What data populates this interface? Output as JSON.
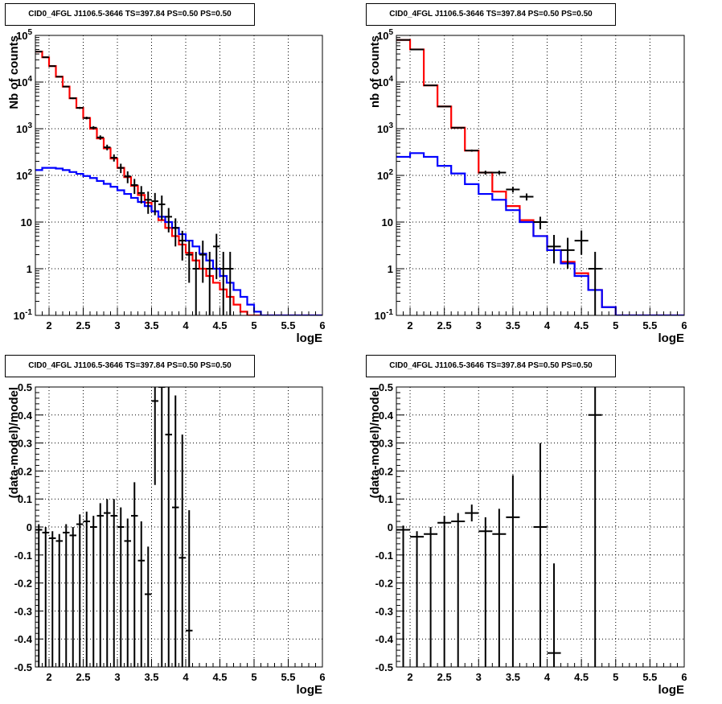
{
  "chart_data": [
    {
      "type": "histogram",
      "title": "CID0_4FGL J1106.5-3646 TS=397.84 PS=0.50 PS=0.50",
      "xlabel": "logE",
      "ylabel": "Nb of counts",
      "xlim": [
        1.8,
        6.0
      ],
      "ylim": [
        0.1,
        100000
      ],
      "yscale": "log",
      "grid": true,
      "x_ticks": [
        "2",
        "2.5",
        "3",
        "3.5",
        "4",
        "4.5",
        "5",
        "5.5",
        "6"
      ],
      "y_ticks": [
        "10^-1",
        "1",
        "10",
        "10^2",
        "10^3",
        "10^4",
        "10^5"
      ],
      "bin_edges": [
        1.8,
        1.9,
        2.0,
        2.1,
        2.2,
        2.3,
        2.4,
        2.5,
        2.6,
        2.7,
        2.8,
        2.9,
        3.0,
        3.1,
        3.2,
        3.3,
        3.4,
        3.5,
        3.6,
        3.7,
        3.8,
        3.9,
        4.0,
        4.1,
        4.2,
        4.3,
        4.4,
        4.5,
        4.6,
        4.7,
        4.8,
        4.9,
        5.0,
        5.1,
        5.2,
        5.3,
        5.4,
        5.5,
        5.6,
        5.7,
        5.8,
        5.9,
        6.0
      ],
      "series": [
        {
          "name": "",
          "kind": "step",
          "color": "#ff0000",
          "values": [
            45000,
            34000,
            22000,
            13000,
            8000,
            4500,
            2800,
            1700,
            1000,
            620,
            380,
            230,
            145,
            92,
            60,
            38,
            26,
            17,
            11,
            7.5,
            5,
            3.3,
            2.2,
            1.5,
            1.0,
            0.7,
            0.5,
            0.36,
            0.25,
            0.17,
            0.12,
            0.1,
            0.1,
            0.1,
            0.1,
            0.1,
            0.1,
            0.1,
            0.1,
            0.1,
            0.1,
            0.1
          ]
        },
        {
          "name": "",
          "kind": "step",
          "color": "#0000ff",
          "values": [
            130,
            145,
            145,
            140,
            130,
            118,
            108,
            97,
            88,
            76,
            66,
            57,
            48,
            40,
            33,
            27,
            22,
            17,
            13,
            10,
            7.5,
            5.5,
            4,
            3,
            2.1,
            1.5,
            1.0,
            0.7,
            0.5,
            0.35,
            0.25,
            0.17,
            0.12,
            0.1,
            0.1,
            0.1,
            0.1,
            0.1,
            0.1,
            0.1,
            0.1,
            0.1
          ]
        },
        {
          "name": "",
          "kind": "points",
          "color": "#000000",
          "x": [
            1.85,
            1.95,
            2.05,
            2.15,
            2.25,
            2.35,
            2.45,
            2.55,
            2.65,
            2.75,
            2.85,
            2.95,
            3.05,
            3.15,
            3.25,
            3.35,
            3.45,
            3.55,
            3.65,
            3.75,
            3.85,
            3.95,
            4.05,
            4.15,
            4.25,
            4.35,
            4.45,
            4.55,
            4.65
          ],
          "y": [
            45000,
            34000,
            22000,
            13000,
            8000,
            4500,
            2800,
            1700,
            1050,
            650,
            400,
            240,
            145,
            95,
            62,
            42,
            30,
            28,
            24,
            13,
            7.5,
            4,
            2,
            1,
            2,
            1,
            3,
            1,
            1
          ],
          "err_low": [
            600,
            500,
            400,
            300,
            250,
            180,
            140,
            110,
            85,
            70,
            55,
            42,
            33,
            27,
            22,
            17,
            15,
            14,
            13,
            7,
            4.5,
            2.5,
            1.5,
            0.9,
            1.5,
            0.9,
            2.4,
            0.9,
            0.9
          ],
          "err_high": [
            600,
            500,
            400,
            300,
            250,
            180,
            140,
            110,
            85,
            70,
            55,
            42,
            33,
            27,
            22,
            17,
            15,
            14,
            13,
            7,
            4.5,
            2.5,
            2.0,
            1.3,
            2.0,
            1.3,
            2.6,
            1.3,
            1.3
          ]
        }
      ]
    },
    {
      "type": "histogram",
      "title": "CID0_4FGL J1106.5-3646 TS=397.84 PS=0.50 PS=0.50",
      "xlabel": "logE",
      "ylabel": "nb of counts",
      "xlim": [
        1.8,
        6.0
      ],
      "ylim": [
        0.1,
        100000
      ],
      "yscale": "log",
      "grid": true,
      "x_ticks": [
        "2",
        "2.5",
        "3",
        "3.5",
        "4",
        "4.5",
        "5",
        "5.5",
        "6"
      ],
      "y_ticks": [
        "10^-1",
        "1",
        "10",
        "10^2",
        "10^3",
        "10^4",
        "10^5"
      ],
      "bin_edges": [
        1.8,
        2.0,
        2.2,
        2.4,
        2.6,
        2.8,
        3.0,
        3.2,
        3.4,
        3.6,
        3.8,
        4.0,
        4.2,
        4.4,
        4.6,
        4.8,
        5.0,
        5.2,
        5.4,
        5.6,
        5.8,
        6.0
      ],
      "series": [
        {
          "name": "",
          "kind": "step",
          "color": "#ff0000",
          "values": [
            80000,
            50000,
            8500,
            3000,
            1050,
            340,
            115,
            45,
            22,
            11,
            5,
            2.5,
            1.4,
            0.8,
            0.35,
            0.15,
            0.1,
            0.1,
            0.1,
            0.1,
            0.1
          ]
        },
        {
          "name": "",
          "kind": "step",
          "color": "#0000ff",
          "values": [
            250,
            300,
            250,
            160,
            110,
            65,
            40,
            30,
            18,
            10,
            5,
            2.5,
            1.3,
            0.7,
            0.35,
            0.15,
            0.1,
            0.1,
            0.1,
            0.1,
            0.1
          ]
        },
        {
          "name": "",
          "kind": "points",
          "color": "#000000",
          "x": [
            1.9,
            2.1,
            2.3,
            2.5,
            2.7,
            2.9,
            3.1,
            3.3,
            3.5,
            3.7,
            3.9,
            4.1,
            4.3,
            4.5,
            4.7
          ],
          "y": [
            80000,
            50000,
            8500,
            3000,
            1050,
            340,
            115,
            115,
            50,
            35,
            10,
            3,
            2.5,
            4,
            1
          ],
          "err_low": [
            280,
            220,
            92,
            55,
            32,
            18,
            11,
            11,
            7,
            6,
            3,
            1.7,
            1.5,
            2,
            0.9
          ],
          "err_high": [
            280,
            220,
            92,
            55,
            32,
            18,
            11,
            11,
            7,
            6,
            3,
            2.3,
            2.1,
            2.6,
            1.3
          ]
        }
      ]
    },
    {
      "type": "scatter",
      "title": "CID0_4FGL J1106.5-3646 TS=397.84 PS=0.50 PS=0.50",
      "xlabel": "logE",
      "ylabel": "(data-model)/model",
      "xlim": [
        1.8,
        6.0
      ],
      "ylim": [
        -0.5,
        0.5
      ],
      "grid": true,
      "x_ticks": [
        "2",
        "2.5",
        "3",
        "3.5",
        "4",
        "4.5",
        "5",
        "5.5",
        "6"
      ],
      "y_ticks": [
        "-0.5",
        "-0.4",
        "-0.3",
        "-0.2",
        "-0.1",
        "0",
        "0.1",
        "0.2",
        "0.3",
        "0.4",
        "0.5"
      ],
      "series": [
        {
          "name": "",
          "kind": "points",
          "color": "#000000",
          "xerr": 0.05,
          "x": [
            1.85,
            1.95,
            2.05,
            2.15,
            2.25,
            2.35,
            2.45,
            2.55,
            2.65,
            2.75,
            2.85,
            2.95,
            3.05,
            3.15,
            3.25,
            3.35,
            3.45,
            3.55,
            3.65,
            3.75,
            3.85,
            3.95,
            4.05
          ],
          "y": [
            -0.01,
            -0.02,
            -0.04,
            -0.05,
            -0.02,
            -0.03,
            0.01,
            0.02,
            0.0,
            0.04,
            0.05,
            0.04,
            0.0,
            -0.05,
            0.04,
            -0.12,
            -0.24,
            0.45,
            0.5,
            0.33,
            0.07,
            -0.11,
            -0.37
          ],
          "err_low": [
            0.02,
            0.02,
            0.025,
            0.025,
            0.03,
            0.03,
            0.035,
            0.035,
            0.04,
            0.045,
            0.05,
            0.06,
            0.07,
            0.08,
            0.1,
            0.12,
            0.15,
            0.3,
            0.5,
            0.4,
            0.4,
            0.5,
            0.5
          ],
          "err_high": [
            0.02,
            0.02,
            0.025,
            0.025,
            0.03,
            0.03,
            0.035,
            0.035,
            0.04,
            0.045,
            0.05,
            0.06,
            0.07,
            0.08,
            0.12,
            0.14,
            0.17,
            0.35,
            0.5,
            0.4,
            0.4,
            0.44,
            0.43
          ]
        }
      ]
    },
    {
      "type": "scatter",
      "title": "CID0_4FGL J1106.5-3646 TS=397.84 PS=0.50 PS=0.50",
      "xlabel": "logE",
      "ylabel": "(data-model)/model",
      "xlim": [
        1.8,
        6.0
      ],
      "ylim": [
        -0.5,
        0.5
      ],
      "grid": true,
      "x_ticks": [
        "2",
        "2.5",
        "3",
        "3.5",
        "4",
        "4.5",
        "5",
        "5.5",
        "6"
      ],
      "y_ticks": [
        "-0.5",
        "-0.4",
        "-0.3",
        "-0.2",
        "-0.1",
        "0",
        "0.1",
        "0.2",
        "0.3",
        "0.4",
        "0.5"
      ],
      "series": [
        {
          "name": "",
          "kind": "points",
          "color": "#000000",
          "xerr": 0.1,
          "x": [
            1.9,
            2.1,
            2.3,
            2.5,
            2.7,
            2.9,
            3.1,
            3.3,
            3.5,
            3.9,
            4.1,
            4.7
          ],
          "y": [
            -0.01,
            -0.035,
            -0.025,
            0.015,
            0.02,
            0.05,
            -0.015,
            -0.025,
            0.035,
            0.0,
            -0.45,
            0.4
          ],
          "err_low": [
            0.015,
            0.02,
            0.025,
            0.025,
            0.03,
            0.03,
            0.05,
            0.09,
            0.15,
            0.35,
            0.32,
            0.9
          ],
          "err_high": [
            0.015,
            0.02,
            0.025,
            0.025,
            0.03,
            0.03,
            0.05,
            0.09,
            0.15,
            0.3,
            0.32,
            0.1
          ]
        }
      ]
    }
  ]
}
